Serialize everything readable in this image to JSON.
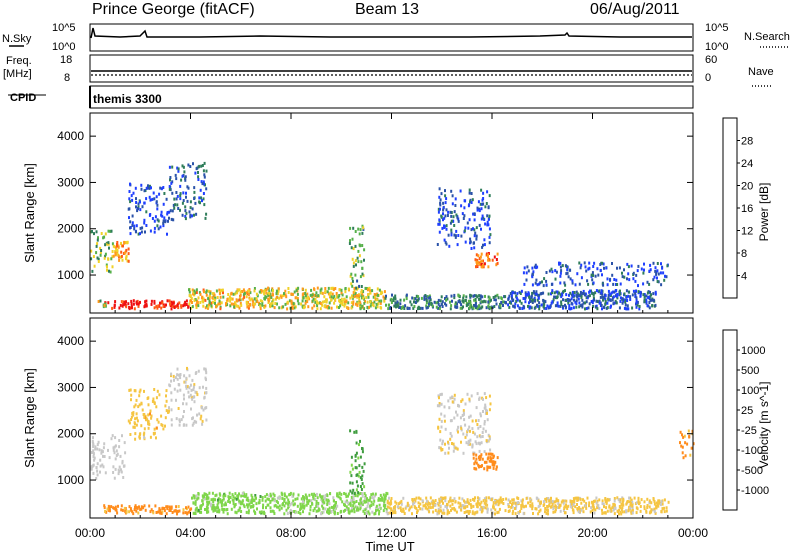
{
  "header": {
    "station": "Prince George (fitACF)",
    "beam": "Beam 13",
    "date": "06/Aug/2011"
  },
  "left_labels": {
    "nsky": "N.Sky",
    "freq_line1": "Freq.",
    "freq_line2": "[MHz]",
    "cpid": "CPID"
  },
  "right_labels": {
    "nsearch": "N.Search",
    "nave": "Nave"
  },
  "cpid_value": "themis 3300",
  "noise_panel": {
    "left_ticks": [
      "10^5",
      "10^0"
    ],
    "right_ticks": [
      "10^5",
      "10^0"
    ]
  },
  "freq_panel": {
    "left_ticks": [
      "18",
      "8"
    ],
    "right_ticks": [
      "60",
      "0"
    ]
  },
  "colors": {
    "power_scale": [
      "#1f3fff",
      "#2a52a8",
      "#2f7d5a",
      "#56b04a",
      "#f0d22a",
      "#ff9a1c",
      "#ff5a14",
      "#ee1010"
    ],
    "velocity_scale": [
      "#ee1010",
      "#ff5a14",
      "#ff8c1c",
      "#f5c542",
      "#c8c8c8",
      "#7fd64a",
      "#3f9c3f",
      "#2a7d7d",
      "#1f3fbf"
    ]
  },
  "chart_data": [
    {
      "type": "heatmap",
      "title": "",
      "xlabel": "",
      "ylabel": "Slant Range [km]",
      "x_ticks": [
        "00:00",
        "04:00",
        "08:00",
        "12:00",
        "16:00",
        "20:00",
        "00:00"
      ],
      "y_ticks": [
        "1000",
        "2000",
        "3000",
        "4000"
      ],
      "ylim": [
        180,
        4500
      ],
      "xlim_hours": [
        0,
        24
      ],
      "colorbar": {
        "label": "Power [dB]",
        "ticks": [
          "4",
          "8",
          "12",
          "16",
          "20",
          "24",
          "28"
        ],
        "range": [
          0,
          30
        ]
      },
      "regions": [
        {
          "t0": 0.55,
          "t1": 3.9,
          "r0": 300,
          "r1": 480,
          "value": 28
        },
        {
          "t0": 0.3,
          "t1": 0.6,
          "r0": 300,
          "r1": 480,
          "value": 14
        },
        {
          "t0": 3.9,
          "t1": 6.5,
          "r0": 300,
          "r1": 720,
          "value": 18
        },
        {
          "t0": 6.5,
          "t1": 11.7,
          "r0": 300,
          "r1": 750,
          "value": 17
        },
        {
          "t0": 11.7,
          "t1": 16.5,
          "r0": 300,
          "r1": 600,
          "value": 9
        },
        {
          "t0": 16.5,
          "t1": 22.5,
          "r0": 300,
          "r1": 700,
          "value": 5
        },
        {
          "t0": 0.0,
          "t1": 0.9,
          "r0": 1050,
          "r1": 2000,
          "value": 13
        },
        {
          "t0": 0.9,
          "t1": 1.5,
          "r0": 1300,
          "r1": 1750,
          "value": 20
        },
        {
          "t0": 1.5,
          "t1": 3.1,
          "r0": 1900,
          "r1": 3000,
          "value": 4
        },
        {
          "t0": 3.1,
          "t1": 4.6,
          "r0": 2200,
          "r1": 3450,
          "value": 6
        },
        {
          "t0": 10.3,
          "t1": 10.9,
          "r0": 700,
          "r1": 2100,
          "value": 12
        },
        {
          "t0": 13.8,
          "t1": 15.9,
          "r0": 1600,
          "r1": 2900,
          "value": 4
        },
        {
          "t0": 15.3,
          "t1": 16.2,
          "r0": 1200,
          "r1": 1500,
          "value": 24
        },
        {
          "t0": 17.2,
          "t1": 23.0,
          "r0": 800,
          "r1": 1300,
          "value": 4
        }
      ]
    },
    {
      "type": "heatmap",
      "title": "",
      "xlabel": "Time UT",
      "ylabel": "Slant Range [km]",
      "x_ticks": [
        "00:00",
        "04:00",
        "08:00",
        "12:00",
        "16:00",
        "20:00",
        "00:00"
      ],
      "y_ticks": [
        "1000",
        "2000",
        "3000",
        "4000"
      ],
      "ylim": [
        180,
        4500
      ],
      "xlim_hours": [
        0,
        24
      ],
      "colorbar": {
        "label": "Velocity [m s^-1]",
        "ticks": [
          "-1000",
          "-500",
          "-100",
          "-25",
          "25",
          "100",
          "500",
          "1000"
        ]
      },
      "regions": [
        {
          "t0": 0.5,
          "t1": 4.0,
          "r0": 300,
          "r1": 480,
          "value": -150
        },
        {
          "t0": 4.0,
          "t1": 7.0,
          "r0": 300,
          "r1": 750,
          "value": 60
        },
        {
          "t0": 7.0,
          "t1": 11.8,
          "r0": 300,
          "r1": 750,
          "value": 40
        },
        {
          "t0": 11.8,
          "t1": 23.0,
          "r0": 300,
          "r1": 650,
          "value": -40
        },
        {
          "t0": 0.0,
          "t1": 1.4,
          "r0": 1050,
          "r1": 2000,
          "value": 0
        },
        {
          "t0": 1.5,
          "t1": 3.1,
          "r0": 1900,
          "r1": 3000,
          "value": -60
        },
        {
          "t0": 3.1,
          "t1": 4.6,
          "r0": 2200,
          "r1": 3450,
          "value": -10
        },
        {
          "t0": 10.3,
          "t1": 10.9,
          "r0": 700,
          "r1": 2100,
          "value": 150
        },
        {
          "t0": 13.8,
          "t1": 15.9,
          "r0": 1600,
          "r1": 2900,
          "value": -20
        },
        {
          "t0": 15.2,
          "t1": 16.2,
          "r0": 1250,
          "r1": 1600,
          "value": -250
        },
        {
          "t0": 23.4,
          "t1": 24.0,
          "r0": 1500,
          "r1": 2100,
          "value": -150
        }
      ]
    }
  ]
}
